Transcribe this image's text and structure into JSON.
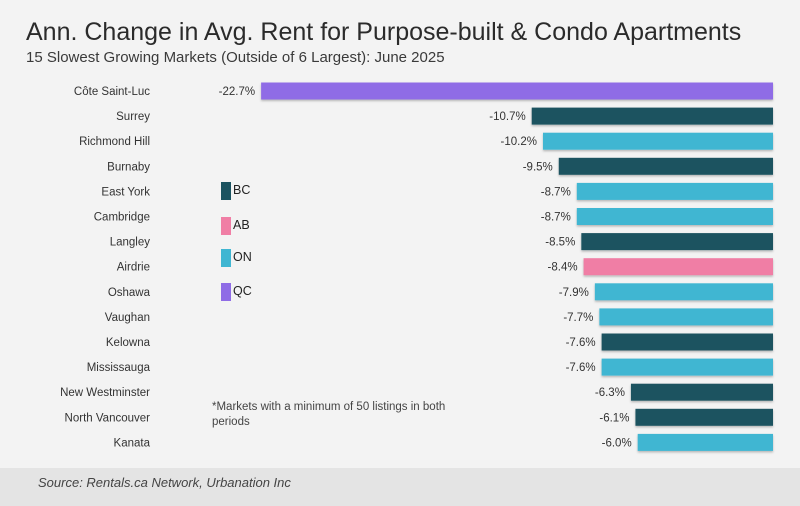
{
  "chart_data": {
    "type": "bar",
    "orientation": "horizontal",
    "title": "Ann. Change in Avg. Rent for Purpose-built & Condo Apartments",
    "subtitle": "15 Slowest Growing Markets (Outside of 6 Largest): June 2025",
    "categories": [
      "Côte Saint-Luc",
      "Surrey",
      "Richmond Hill",
      "Burnaby",
      "East York",
      "Cambridge",
      "Langley",
      "Airdrie",
      "Oshawa",
      "Vaughan",
      "Kelowna",
      "Mississauga",
      "New Westminster",
      "North Vancouver",
      "Kanata"
    ],
    "values": [
      -22.7,
      -10.7,
      -10.2,
      -9.5,
      -8.7,
      -8.7,
      -8.5,
      -8.4,
      -7.9,
      -7.7,
      -7.6,
      -7.6,
      -6.3,
      -6.1,
      -6.0
    ],
    "value_labels": [
      "-22.7%",
      "-10.7%",
      "-10.2%",
      "-9.5%",
      "-8.7%",
      "-8.7%",
      "-8.5%",
      "-8.4%",
      "-7.9%",
      "-7.7%",
      "-7.6%",
      "-7.6%",
      "-6.3%",
      "-6.1%",
      "-6.0%"
    ],
    "provinces": [
      "QC",
      "BC",
      "ON",
      "BC",
      "ON",
      "ON",
      "BC",
      "AB",
      "ON",
      "ON",
      "BC",
      "ON",
      "BC",
      "BC",
      "ON"
    ],
    "legend": [
      {
        "label": "BC",
        "color": "#1b5360"
      },
      {
        "label": "AB",
        "color": "#f07ea5"
      },
      {
        "label": "ON",
        "color": "#3fb6d2"
      },
      {
        "label": "QC",
        "color": "#8f6ce6"
      }
    ],
    "xlim": [
      -23.5,
      0
    ]
  },
  "note": "*Markets with a minimum of 50 listings in both periods",
  "source": "Source: Rentals.ca Network, Urbanation Inc"
}
